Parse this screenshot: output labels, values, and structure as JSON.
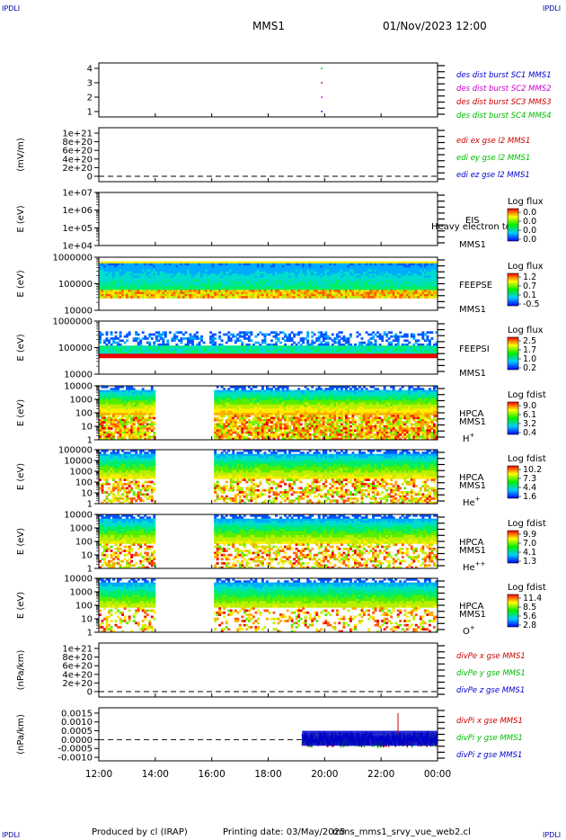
{
  "corner_label": "IPDLI",
  "header": {
    "spacecraft": "MMS1",
    "datetime": "01/Nov/2023 12:00"
  },
  "footer": {
    "produced_by": "Produced by cl (IRAP)",
    "printing_date": "Printing date: 03/May/2025",
    "script": "mms_mms1_srvy_vue_web2.cl"
  },
  "colors": {
    "blue": "#0000cc",
    "magenta": "#cc00cc",
    "red": "#cc0000",
    "green": "#00bb00"
  },
  "chart_data": {
    "type": "heatmap",
    "x_ticks": [
      "12:00",
      "14:00",
      "16:00",
      "18:00",
      "20:00",
      "22:00",
      "00:00"
    ],
    "x_range_hours": [
      12,
      24
    ],
    "panels": [
      {
        "id": "burst",
        "kind": "markers",
        "ylabel": "",
        "ytick_labels": [
          "4",
          "3",
          "2",
          "1"
        ],
        "series": [
          {
            "name": "des dist burst SC1 MMS1",
            "color": "#0000cc",
            "y": 1,
            "x": [
              19.9
            ]
          },
          {
            "name": "des dist burst SC2 MMS2",
            "color": "#cc00cc",
            "y": 2,
            "x": [
              19.9
            ]
          },
          {
            "name": "des dist burst SC3 MMS3",
            "color": "#cc0000",
            "y": 3,
            "x": [
              19.9
            ]
          },
          {
            "name": "des dist burst SC4 MMS4",
            "color": "#00bb00",
            "y": 4,
            "x": [
              19.9
            ]
          }
        ]
      },
      {
        "id": "edi",
        "kind": "line",
        "ylabel": "(mV/m)",
        "ytick_labels": [
          "1e+21",
          "8e+20",
          "6e+20",
          "4e+20",
          "2e+20",
          "0"
        ],
        "legend": [
          {
            "text": "edi ex gse l2 MMS1",
            "color": "#cc0000"
          },
          {
            "text": "edi ey gse l2 MMS1",
            "color": "#00bb00"
          },
          {
            "text": "edi ez gse l2 MMS1",
            "color": "#0000cc"
          }
        ]
      },
      {
        "id": "eis",
        "kind": "spectrogram-empty",
        "ylabel": "E (eV)",
        "ytick_labels": [
          "1e+07",
          "1e+06",
          "1e+05",
          "1e+04"
        ],
        "side_labels": [
          "EIS",
          "MMS1"
        ],
        "overlay_text": "Heavy electron to",
        "colorbar": {
          "title": "Log flux",
          "labels": [
            "0.0",
            "0.0",
            "0.0",
            "0.0"
          ]
        }
      },
      {
        "id": "feepse",
        "kind": "spectrogram",
        "ylabel": "E (eV)",
        "ytick_labels": [
          "1000000",
          "100000",
          "10000"
        ],
        "side_labels": [
          "FEEPSE",
          "MMS1"
        ],
        "colorbar": {
          "title": "Log flux",
          "labels": [
            "1.2",
            "0.7",
            "0.1",
            "-0.5"
          ]
        },
        "coverage_hours": [
          [
            12,
            24
          ]
        ]
      },
      {
        "id": "feepsi",
        "kind": "spectrogram",
        "ylabel": "E (eV)",
        "ytick_labels": [
          "1000000",
          "100000",
          "10000"
        ],
        "side_labels": [
          "FEEPSI",
          "MMS1"
        ],
        "colorbar": {
          "title": "Log flux",
          "labels": [
            "2.5",
            "1.7",
            "1.0",
            "0.2"
          ]
        },
        "coverage_hours": [
          [
            12,
            24
          ]
        ]
      },
      {
        "id": "hpca-h",
        "kind": "spectrogram",
        "ylabel": "E (eV)",
        "ytick_labels": [
          "10000",
          "1000",
          "100",
          "10",
          "1"
        ],
        "side_labels": [
          "HPCA",
          "MMS1"
        ],
        "species": "H",
        "species_charge": "+",
        "colorbar": {
          "title": "Log fdist",
          "labels": [
            "9.0",
            "6.1",
            "3.2",
            "0.4"
          ]
        },
        "coverage_hours": [
          [
            12,
            14
          ],
          [
            16.1,
            24
          ]
        ]
      },
      {
        "id": "hpca-he",
        "kind": "spectrogram",
        "ylabel": "E (eV)",
        "ytick_labels": [
          "100000",
          "10000",
          "1000",
          "100",
          "10",
          "1"
        ],
        "side_labels": [
          "HPCA",
          "MMS1"
        ],
        "species": "He",
        "species_charge": "+",
        "colorbar": {
          "title": "Log fdist",
          "labels": [
            "10.2",
            "7.3",
            "4.4",
            "1.6"
          ]
        },
        "coverage_hours": [
          [
            12,
            14
          ],
          [
            16.1,
            24
          ]
        ]
      },
      {
        "id": "hpca-he2",
        "kind": "spectrogram",
        "ylabel": "E (eV)",
        "ytick_labels": [
          "10000",
          "1000",
          "100",
          "10",
          "1"
        ],
        "side_labels": [
          "HPCA",
          "MMS1"
        ],
        "species": "He",
        "species_charge": "++",
        "colorbar": {
          "title": "Log fdist",
          "labels": [
            "9.9",
            "7.0",
            "4.1",
            "1.3"
          ]
        },
        "coverage_hours": [
          [
            12,
            14
          ],
          [
            16.1,
            24
          ]
        ]
      },
      {
        "id": "hpca-o",
        "kind": "spectrogram",
        "ylabel": "E (eV)",
        "ytick_labels": [
          "10000",
          "1000",
          "100",
          "10",
          "1"
        ],
        "side_labels": [
          "HPCA",
          "MMS1"
        ],
        "species": "O",
        "species_charge": "+",
        "colorbar": {
          "title": "Log fdist",
          "labels": [
            "11.4",
            "8.5",
            "5.6",
            "2.8"
          ]
        },
        "coverage_hours": [
          [
            12,
            14
          ],
          [
            16.1,
            24
          ]
        ]
      },
      {
        "id": "divpe",
        "kind": "line",
        "ylabel": "(nPa/km)",
        "ytick_labels": [
          "1e+21",
          "8e+20",
          "6e+20",
          "4e+20",
          "2e+20",
          "0"
        ],
        "legend": [
          {
            "text": "divPe x gse MMS1",
            "color": "#cc0000"
          },
          {
            "text": "divPe y gse MMS1",
            "color": "#00bb00"
          },
          {
            "text": "divPe z gse MMS1",
            "color": "#0000cc"
          }
        ]
      },
      {
        "id": "divpi",
        "kind": "line",
        "ylabel": "(nPa/km)",
        "ytick_labels": [
          "0.0015",
          "0.0010",
          "0.0005",
          "0.0000",
          "-0.0005",
          "-0.0010"
        ],
        "ylim": [
          -0.0012,
          0.0018
        ],
        "coverage_hours": [
          [
            19.2,
            24
          ]
        ],
        "legend": [
          {
            "text": "divPi x gse MMS1",
            "color": "#cc0000"
          },
          {
            "text": "divPi y gse MMS1",
            "color": "#00bb00"
          },
          {
            "text": "divPi z gse MMS1",
            "color": "#0000cc"
          }
        ]
      }
    ]
  }
}
